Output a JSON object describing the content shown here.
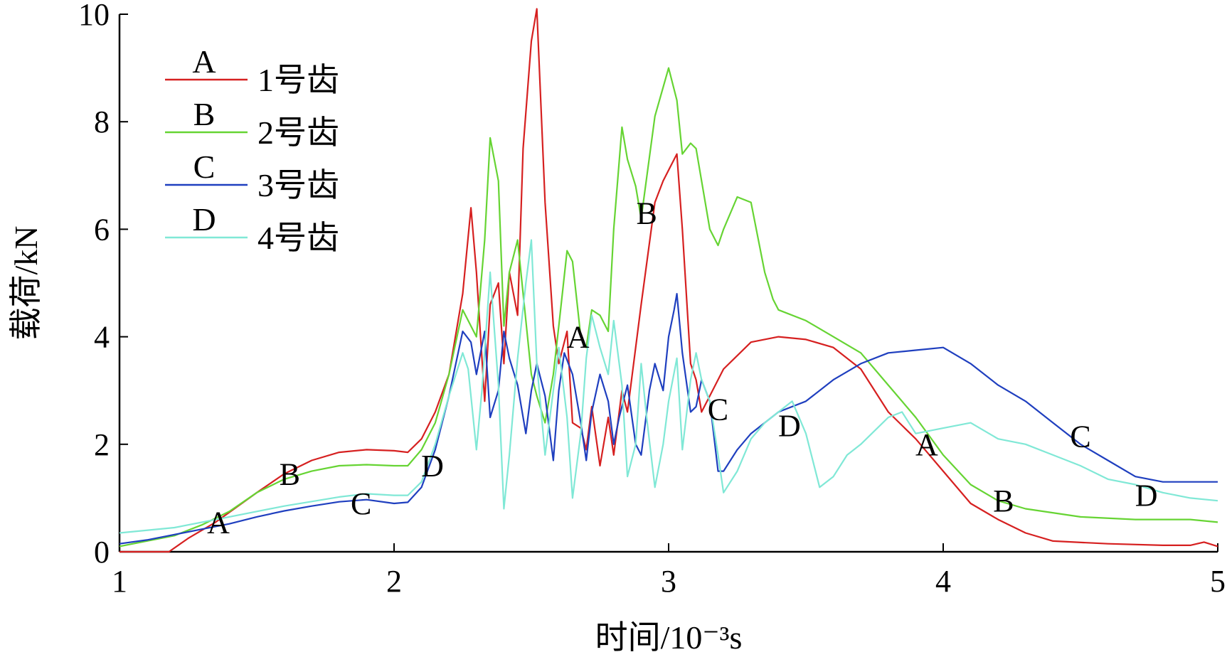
{
  "chart_data": {
    "type": "line",
    "xlabel": "时间/10⁻³s",
    "ylabel": "载荷/kN",
    "xlim": [
      1,
      5
    ],
    "ylim": [
      0,
      10
    ],
    "xticks": [
      1,
      2,
      3,
      4,
      5
    ],
    "yticks": [
      0,
      2,
      4,
      6,
      8,
      10
    ],
    "grid": false,
    "legend_position": "top-left",
    "series": [
      {
        "name": "1号齿",
        "letter": "A",
        "color": "#d62020",
        "x": [
          1.0,
          1.18,
          1.25,
          1.35,
          1.5,
          1.6,
          1.7,
          1.8,
          1.9,
          2.0,
          2.05,
          2.1,
          2.15,
          2.2,
          2.25,
          2.28,
          2.3,
          2.33,
          2.35,
          2.38,
          2.4,
          2.42,
          2.45,
          2.47,
          2.5,
          2.52,
          2.55,
          2.58,
          2.6,
          2.63,
          2.65,
          2.68,
          2.7,
          2.72,
          2.75,
          2.78,
          2.8,
          2.83,
          2.85,
          2.9,
          2.95,
          2.98,
          3.0,
          3.03,
          3.05,
          3.08,
          3.1,
          3.12,
          3.15,
          3.2,
          3.3,
          3.4,
          3.5,
          3.6,
          3.7,
          3.8,
          3.9,
          4.0,
          4.1,
          4.2,
          4.3,
          4.4,
          4.6,
          4.8,
          4.9,
          4.95,
          5.0
        ],
        "y": [
          0.0,
          0.0,
          0.25,
          0.55,
          1.1,
          1.45,
          1.7,
          1.85,
          1.9,
          1.88,
          1.85,
          2.1,
          2.6,
          3.3,
          4.8,
          6.4,
          5.2,
          2.8,
          4.6,
          5.0,
          3.5,
          5.2,
          4.4,
          7.5,
          9.5,
          10.1,
          6.5,
          4.2,
          3.5,
          4.1,
          2.4,
          2.3,
          1.9,
          2.7,
          1.6,
          2.5,
          1.8,
          3.0,
          2.6,
          4.6,
          6.5,
          6.9,
          7.1,
          7.4,
          6.0,
          3.5,
          3.2,
          2.6,
          2.9,
          3.4,
          3.9,
          4.0,
          3.95,
          3.8,
          3.4,
          2.6,
          2.1,
          1.5,
          0.9,
          0.6,
          0.35,
          0.2,
          0.15,
          0.12,
          0.12,
          0.18,
          0.1
        ]
      },
      {
        "name": "2号齿",
        "letter": "B",
        "color": "#66d433",
        "x": [
          1.0,
          1.2,
          1.3,
          1.4,
          1.5,
          1.6,
          1.7,
          1.8,
          1.9,
          2.0,
          2.05,
          2.1,
          2.15,
          2.2,
          2.25,
          2.3,
          2.33,
          2.35,
          2.38,
          2.4,
          2.42,
          2.45,
          2.48,
          2.5,
          2.52,
          2.55,
          2.58,
          2.6,
          2.63,
          2.65,
          2.68,
          2.7,
          2.72,
          2.75,
          2.78,
          2.8,
          2.83,
          2.85,
          2.88,
          2.9,
          2.95,
          3.0,
          3.03,
          3.05,
          3.08,
          3.1,
          3.15,
          3.18,
          3.2,
          3.25,
          3.3,
          3.35,
          3.38,
          3.4,
          3.5,
          3.6,
          3.7,
          3.8,
          3.9,
          4.0,
          4.1,
          4.2,
          4.3,
          4.5,
          4.7,
          4.9,
          5.0
        ],
        "y": [
          0.1,
          0.3,
          0.5,
          0.75,
          1.1,
          1.35,
          1.5,
          1.6,
          1.62,
          1.6,
          1.6,
          1.9,
          2.4,
          3.3,
          4.5,
          4.0,
          5.8,
          7.7,
          6.9,
          4.2,
          5.2,
          5.8,
          4.3,
          3.3,
          2.9,
          2.4,
          3.3,
          4.2,
          5.6,
          5.4,
          4.0,
          3.8,
          4.5,
          4.4,
          4.1,
          6.0,
          7.9,
          7.3,
          6.8,
          6.2,
          8.1,
          9.0,
          8.4,
          7.4,
          7.6,
          7.5,
          6.0,
          5.7,
          6.0,
          6.6,
          6.5,
          5.2,
          4.7,
          4.5,
          4.3,
          4.0,
          3.7,
          3.1,
          2.5,
          1.8,
          1.25,
          0.95,
          0.8,
          0.65,
          0.6,
          0.6,
          0.55
        ]
      },
      {
        "name": "3号齿",
        "letter": "C",
        "color": "#1f3fbf",
        "x": [
          1.0,
          1.1,
          1.2,
          1.3,
          1.4,
          1.5,
          1.6,
          1.7,
          1.8,
          1.9,
          2.0,
          2.05,
          2.1,
          2.15,
          2.2,
          2.25,
          2.28,
          2.3,
          2.33,
          2.35,
          2.38,
          2.4,
          2.42,
          2.45,
          2.48,
          2.5,
          2.52,
          2.55,
          2.58,
          2.6,
          2.62,
          2.65,
          2.68,
          2.7,
          2.72,
          2.75,
          2.78,
          2.8,
          2.82,
          2.85,
          2.88,
          2.9,
          2.93,
          2.95,
          2.98,
          3.0,
          3.02,
          3.03,
          3.05,
          3.08,
          3.1,
          3.12,
          3.15,
          3.18,
          3.2,
          3.25,
          3.3,
          3.4,
          3.5,
          3.6,
          3.7,
          3.8,
          3.9,
          4.0,
          4.1,
          4.2,
          4.3,
          4.4,
          4.5,
          4.6,
          4.7,
          4.8,
          4.9,
          5.0
        ],
        "y": [
          0.15,
          0.22,
          0.32,
          0.42,
          0.52,
          0.65,
          0.76,
          0.85,
          0.93,
          0.97,
          0.9,
          0.92,
          1.2,
          1.9,
          2.9,
          4.1,
          3.9,
          3.3,
          4.1,
          2.5,
          3.0,
          4.1,
          3.6,
          3.1,
          2.2,
          3.0,
          3.5,
          2.9,
          1.7,
          3.0,
          3.7,
          3.3,
          2.4,
          1.7,
          2.6,
          3.3,
          2.8,
          2.0,
          2.5,
          3.1,
          2.0,
          1.8,
          3.0,
          3.5,
          3.0,
          4.0,
          4.5,
          4.8,
          3.7,
          2.6,
          2.7,
          3.2,
          2.8,
          1.5,
          1.5,
          1.9,
          2.2,
          2.6,
          2.8,
          3.2,
          3.5,
          3.7,
          3.75,
          3.8,
          3.5,
          3.1,
          2.8,
          2.4,
          2.0,
          1.7,
          1.4,
          1.3,
          1.3,
          1.3
        ]
      },
      {
        "name": "4号齿",
        "letter": "D",
        "color": "#80e8d6",
        "x": [
          1.0,
          1.2,
          1.4,
          1.6,
          1.8,
          1.9,
          2.0,
          2.05,
          2.1,
          2.15,
          2.2,
          2.25,
          2.27,
          2.3,
          2.32,
          2.35,
          2.38,
          2.4,
          2.42,
          2.45,
          2.48,
          2.5,
          2.52,
          2.55,
          2.58,
          2.6,
          2.63,
          2.65,
          2.68,
          2.7,
          2.72,
          2.75,
          2.78,
          2.8,
          2.83,
          2.85,
          2.88,
          2.9,
          2.92,
          2.95,
          2.98,
          3.0,
          3.03,
          3.05,
          3.08,
          3.1,
          3.12,
          3.15,
          3.18,
          3.2,
          3.25,
          3.3,
          3.35,
          3.4,
          3.45,
          3.5,
          3.55,
          3.6,
          3.65,
          3.7,
          3.8,
          3.85,
          3.9,
          4.0,
          4.1,
          4.2,
          4.3,
          4.4,
          4.5,
          4.6,
          4.7,
          4.8,
          4.9,
          5.0
        ],
        "y": [
          0.35,
          0.45,
          0.65,
          0.85,
          1.02,
          1.08,
          1.05,
          1.05,
          1.3,
          2.0,
          2.9,
          3.7,
          3.4,
          1.9,
          3.0,
          5.2,
          3.1,
          0.8,
          1.8,
          3.6,
          5.0,
          5.8,
          3.5,
          1.8,
          3.0,
          3.8,
          2.5,
          1.0,
          2.2,
          3.6,
          4.4,
          3.8,
          3.3,
          4.3,
          3.1,
          1.4,
          2.0,
          3.5,
          2.5,
          1.2,
          2.0,
          2.8,
          3.6,
          1.9,
          3.2,
          3.7,
          3.2,
          2.8,
          1.8,
          1.1,
          1.5,
          2.1,
          2.4,
          2.6,
          2.8,
          2.2,
          1.2,
          1.4,
          1.8,
          2.0,
          2.5,
          2.6,
          2.2,
          2.3,
          2.4,
          2.1,
          2.0,
          1.8,
          1.6,
          1.35,
          1.25,
          1.1,
          1.0,
          0.95
        ]
      }
    ],
    "curve_labels": [
      {
        "text": "A",
        "x": 1.36,
        "y": 0.55
      },
      {
        "text": "B",
        "x": 1.62,
        "y": 1.45
      },
      {
        "text": "C",
        "x": 1.88,
        "y": 0.9
      },
      {
        "text": "D",
        "x": 2.14,
        "y": 1.6
      },
      {
        "text": "A",
        "x": 2.67,
        "y": 4.0
      },
      {
        "text": "B",
        "x": 2.92,
        "y": 6.3
      },
      {
        "text": "C",
        "x": 3.18,
        "y": 2.65
      },
      {
        "text": "D",
        "x": 3.44,
        "y": 2.35
      },
      {
        "text": "A",
        "x": 3.94,
        "y": 2.0
      },
      {
        "text": "B",
        "x": 4.22,
        "y": 0.95
      },
      {
        "text": "C",
        "x": 4.5,
        "y": 2.15
      },
      {
        "text": "D",
        "x": 4.74,
        "y": 1.05
      }
    ]
  }
}
